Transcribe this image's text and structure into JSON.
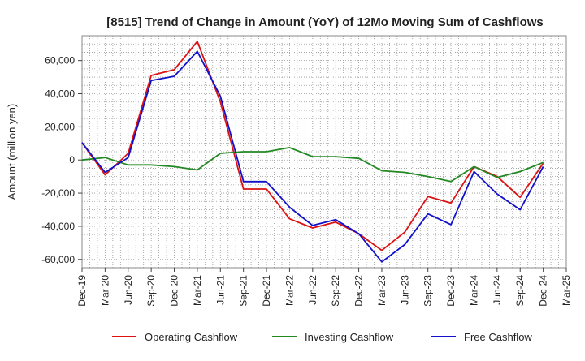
{
  "chart_data": {
    "type": "line",
    "title": "[8515]  Trend of Change in Amount (YoY) of 12Mo Moving Sum of Cashflows",
    "xlabel": "",
    "ylabel": "Amount (million yen)",
    "ylim": [
      -65000,
      75000
    ],
    "yticks": [
      -60000,
      -40000,
      -20000,
      0,
      20000,
      40000,
      60000
    ],
    "ytick_labels": [
      "-60,000",
      "-40,000",
      "-20,000",
      "0",
      "20,000",
      "40,000",
      "60,000"
    ],
    "categories": [
      "Dec-19",
      "Mar-20",
      "Jun-20",
      "Sep-20",
      "Dec-20",
      "Mar-21",
      "Jun-21",
      "Sep-21",
      "Dec-21",
      "Mar-22",
      "Jun-22",
      "Sep-22",
      "Dec-22",
      "Mar-23",
      "Jun-23",
      "Sep-23",
      "Dec-23",
      "Mar-24",
      "Jun-24",
      "Sep-24",
      "Dec-24",
      "Mar-25"
    ],
    "grid": true,
    "legend_position": "bottom",
    "series": [
      {
        "name": "Operating Cashflow",
        "color": "#dd1111",
        "values": [
          10500,
          -9000,
          4000,
          51000,
          54500,
          71500,
          35000,
          -17500,
          -17500,
          -35500,
          -41000,
          -37500,
          -44500,
          -54500,
          -43500,
          -22000,
          -26000,
          -4000,
          -10000,
          -22500,
          -2000,
          null
        ]
      },
      {
        "name": "Investing Cashflow",
        "color": "#228822",
        "values": [
          0,
          1500,
          -3000,
          -3000,
          -4000,
          -6000,
          4000,
          5000,
          5000,
          7500,
          2000,
          2000,
          1000,
          -6500,
          -7500,
          -10000,
          -13000,
          -4000,
          -10500,
          -7000,
          -1500,
          null
        ]
      },
      {
        "name": "Free Cashflow",
        "color": "#1111cc",
        "values": [
          10500,
          -7500,
          1500,
          48000,
          50500,
          65500,
          38500,
          -13000,
          -13000,
          -28500,
          -39500,
          -36000,
          -44500,
          -61500,
          -51000,
          -32500,
          -39000,
          -7000,
          -20500,
          -30000,
          -4000,
          null
        ]
      }
    ]
  }
}
